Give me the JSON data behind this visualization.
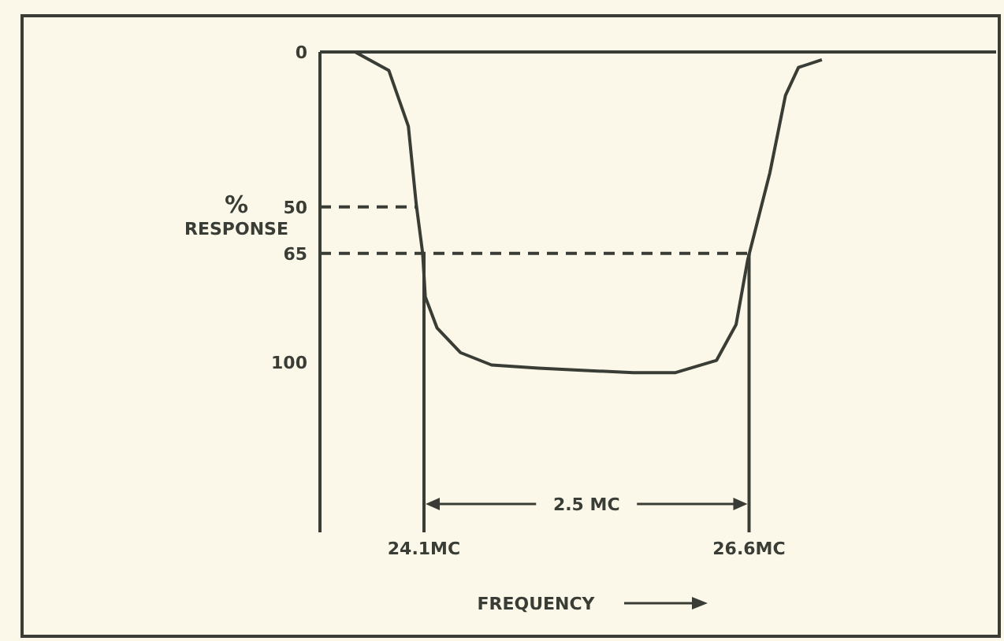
{
  "chart_data": {
    "type": "line",
    "xlabel": "FREQUENCY",
    "ylabel": "% RESPONSE",
    "annotations": [
      "2.5 MC"
    ],
    "xlim": [
      23.3,
      28.5
    ],
    "xticks": [
      {
        "value": 24.1,
        "label": "24.1MC"
      },
      {
        "value": 26.6,
        "label": "26.6MC"
      }
    ],
    "ylim": [
      155,
      0
    ],
    "yticks": [
      0,
      50,
      65,
      100
    ],
    "marker": "none",
    "tick_labels": "xy",
    "series": [
      {
        "color": "#3a3d35",
        "line_style": "solid",
        "x": [
          23.57,
          23.83,
          23.98,
          24.04,
          24.09,
          24.11,
          24.2,
          24.38,
          24.62,
          24.98,
          25.71,
          26.03,
          26.35,
          26.5,
          26.59,
          26.76,
          26.88,
          26.98,
          27.16
        ],
        "values": [
          0,
          6,
          24,
          49,
          65,
          79,
          89,
          97,
          101,
          102,
          103.5,
          103.5,
          99.5,
          88,
          67,
          39,
          14,
          5,
          2.5
        ]
      },
      {
        "color": "#3a3d35",
        "line_style": "dashed",
        "x": [
          23.3,
          24.04
        ],
        "values": [
          50,
          50
        ]
      },
      {
        "color": "#3a3d35",
        "line_style": "dashed",
        "x": [
          23.3,
          26.6
        ],
        "values": [
          65,
          65
        ]
      },
      {
        "color": "#3a3d35",
        "line_style": "solid",
        "x": [
          24.1,
          24.1
        ],
        "values": [
          65,
          155
        ]
      },
      {
        "color": "#3a3d35",
        "line_style": "solid",
        "x": [
          26.6,
          26.6
        ],
        "values": [
          65,
          155
        ]
      }
    ]
  }
}
